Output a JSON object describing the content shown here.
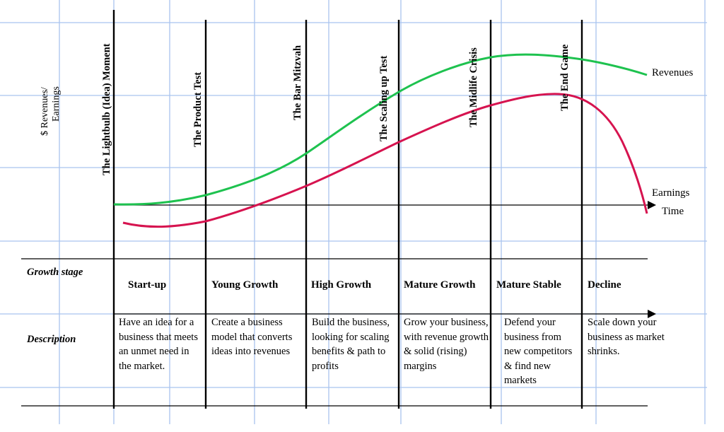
{
  "y_axis_label_line1": "$ Revenues/",
  "y_axis_label_line2": "Earnings",
  "x_axis_label": "Time",
  "milestones": [
    "The Lightbulb (Idea) Moment",
    "The Product Test",
    "The Bar Mitzvah",
    "The Scaling up Test",
    "The Midlife Crisis",
    "The End Game"
  ],
  "curves": {
    "revenues_label": "Revenues",
    "earnings_label": "Earnings",
    "revenues_color": "#1ec24f",
    "earnings_color": "#d6134f"
  },
  "table": {
    "growth_stage_header": "Growth stage",
    "description_header": "Description",
    "stages": [
      {
        "name": "Start-up",
        "description": "Have an idea for a business that meets an unmet need in the market."
      },
      {
        "name": "Young Growth",
        "description": "Create a business model that converts ideas into revenues"
      },
      {
        "name": "High Growth",
        "description": "Build the business, looking for scaling benefits & path to profits"
      },
      {
        "name": "Mature Growth",
        "description": "Grow your business, with revenue growth & solid (rising) margins"
      },
      {
        "name": "Mature Stable",
        "description": "Defend your business from new competitors & find new markets"
      },
      {
        "name": "Decline",
        "description": "Scale down your business as market shrinks."
      }
    ]
  },
  "grid_color": "#a9c4ef"
}
